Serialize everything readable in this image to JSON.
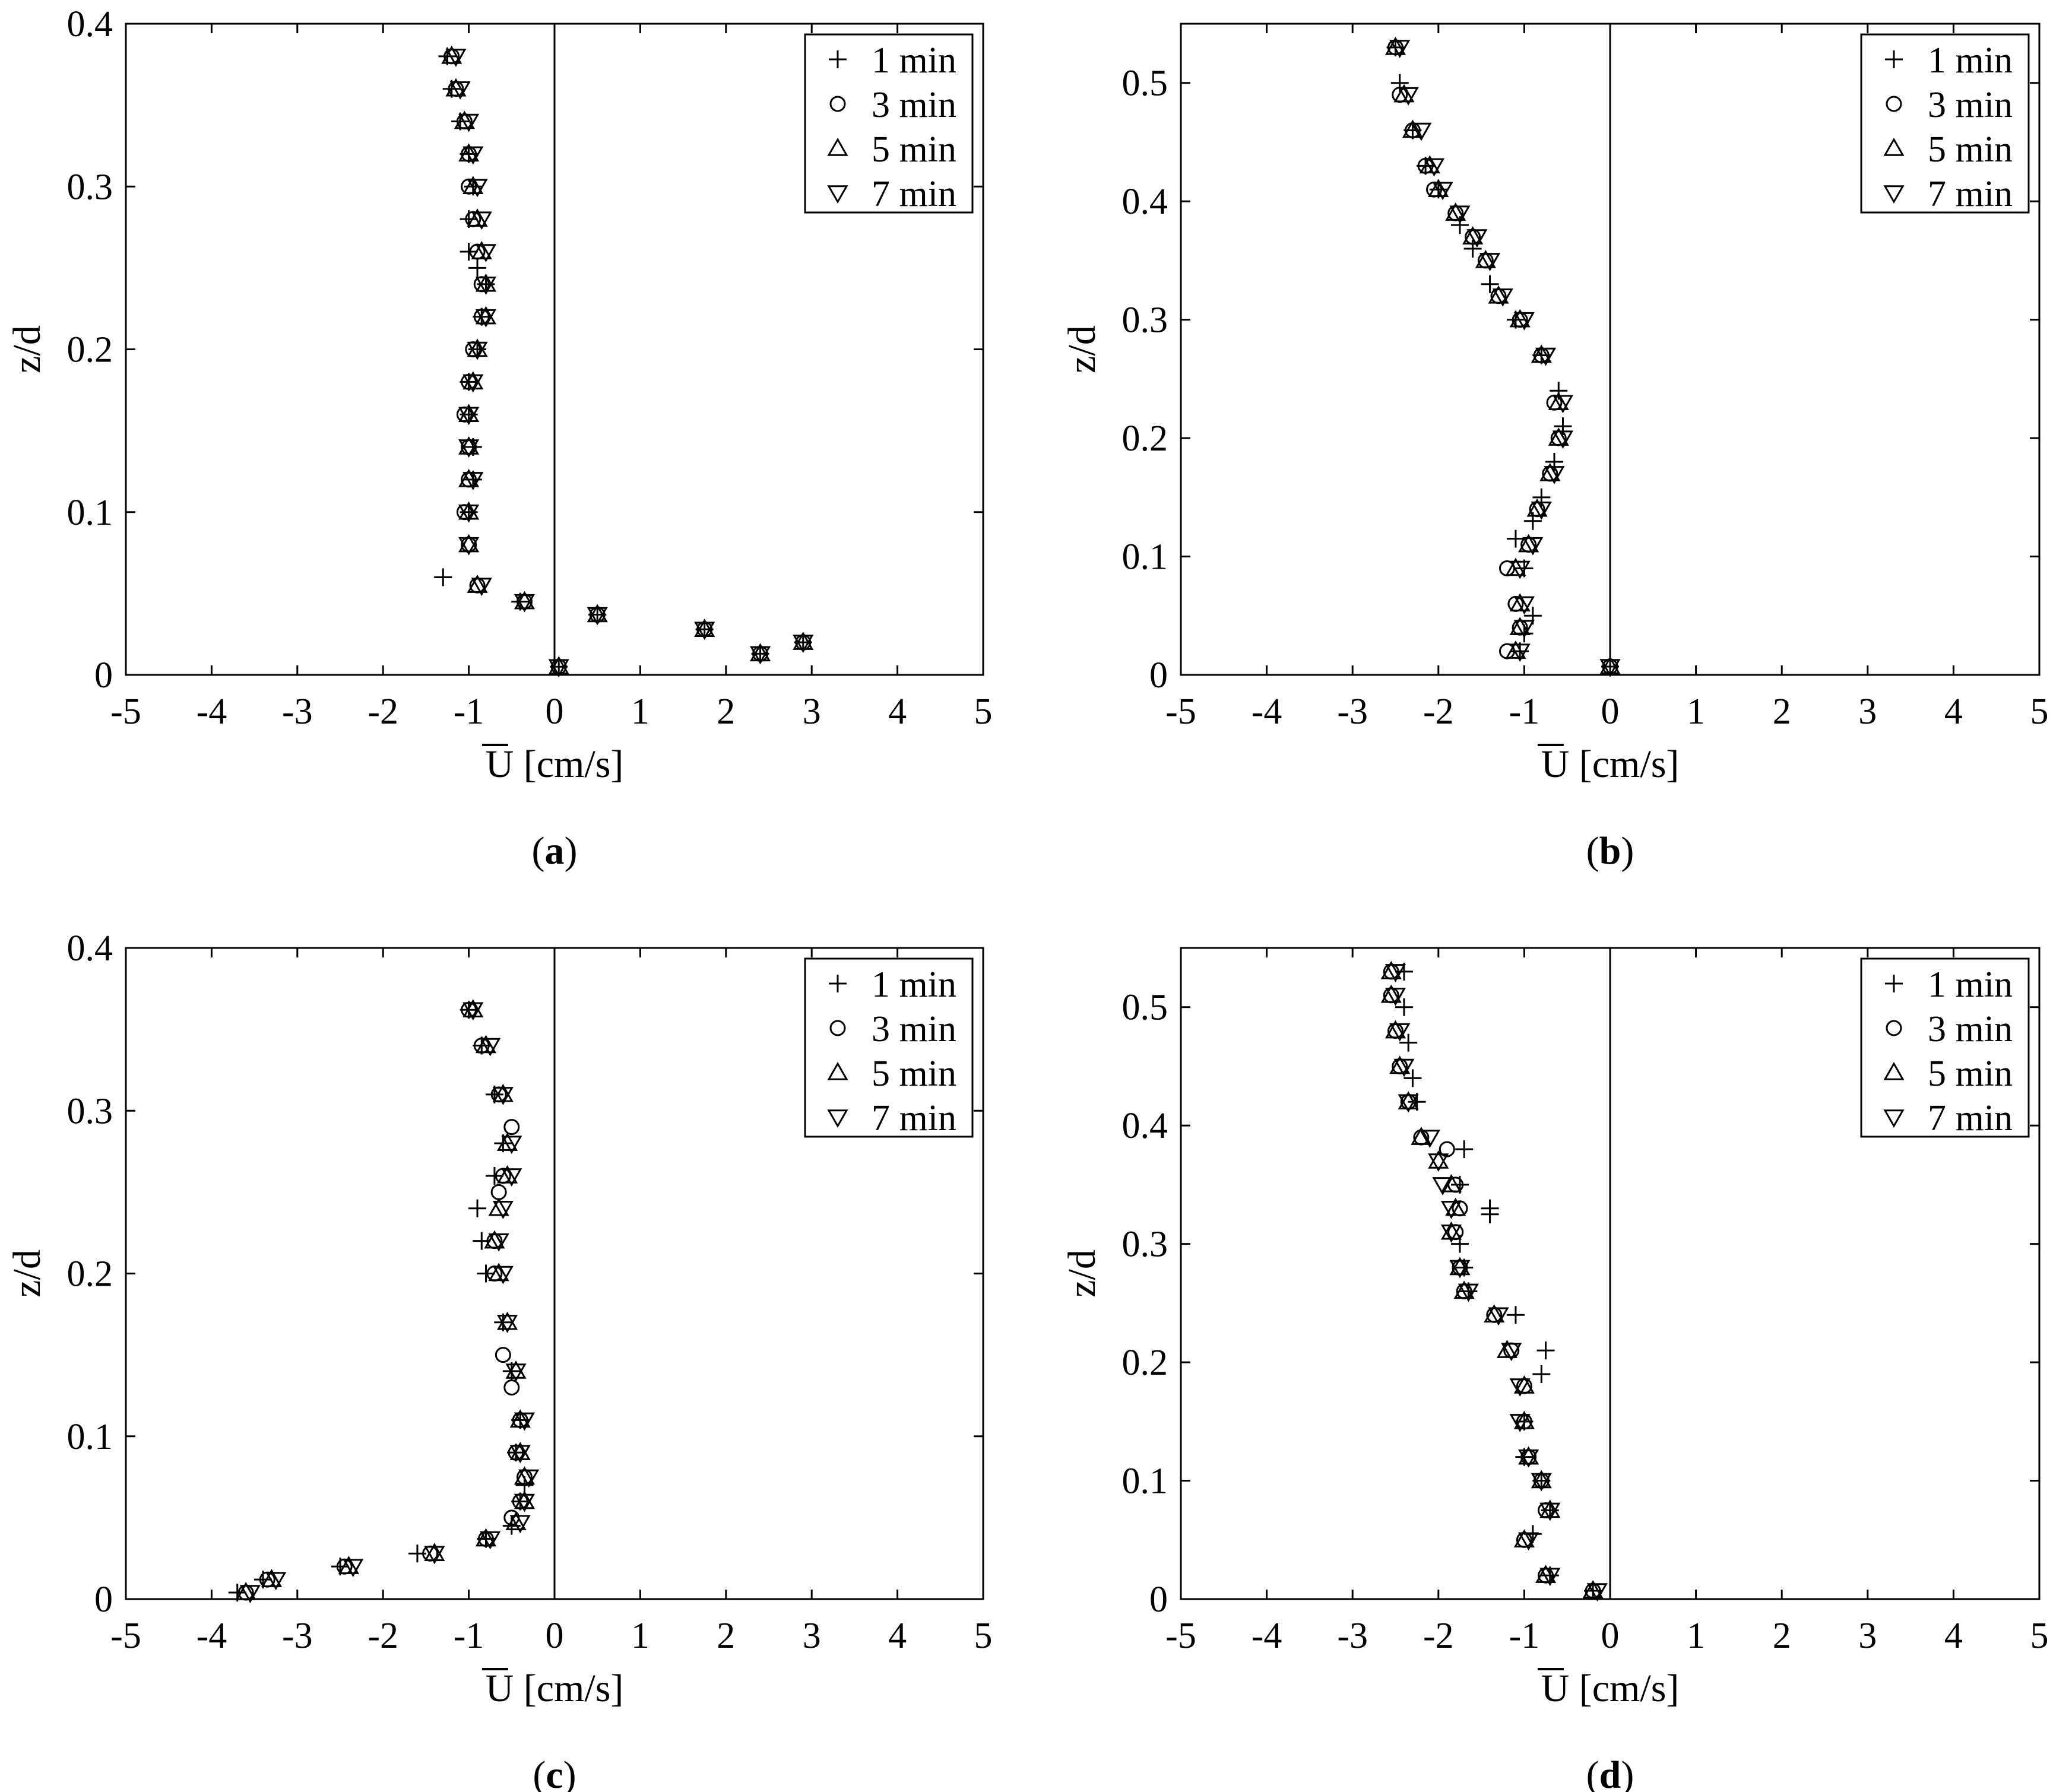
{
  "chart_data": [
    {
      "type": "scatter",
      "panel_label": "a",
      "xlabel": "U [cm/s]",
      "ylabel": "z/d",
      "xlim": [
        -5,
        5
      ],
      "ylim": [
        0,
        0.4
      ],
      "xticks": [
        "-5",
        "-4",
        "-3",
        "-2",
        "-1",
        "0",
        "1",
        "2",
        "3",
        "4",
        "5"
      ],
      "yticks": [
        "0",
        "0.1",
        "0.2",
        "0.3",
        "0.4"
      ],
      "vline_at": 0,
      "legend_position": "top-right",
      "series": [
        {
          "name": "1 min",
          "marker": "plus",
          "x": [
            -1.25,
            -1.2,
            -1.1,
            -1.0,
            -0.95,
            -1.0,
            -1.0,
            -0.9,
            -0.8,
            -0.85,
            -0.9,
            -1.0,
            -1.0,
            -0.95,
            -0.95,
            -1.0,
            -1.3,
            -0.4,
            0.05,
            0.5,
            1.75,
            2.4,
            2.9
          ],
          "y": [
            0.38,
            0.36,
            0.34,
            0.32,
            0.3,
            0.28,
            0.26,
            0.25,
            0.24,
            0.22,
            0.2,
            0.18,
            0.16,
            0.14,
            0.12,
            0.1,
            0.06,
            0.045,
            0.005,
            0.037,
            0.028,
            0.013,
            0.02
          ]
        },
        {
          "name": "3 min",
          "marker": "circle",
          "x": [
            -1.2,
            -1.15,
            -1.05,
            -1.0,
            -1.0,
            -0.95,
            -0.9,
            -0.85,
            -0.85,
            -0.95,
            -1.0,
            -1.05,
            -1.0,
            -1.0,
            -1.05,
            -1.0,
            -0.9,
            -0.35,
            0.05,
            0.5,
            1.75,
            2.4,
            2.9
          ],
          "y": [
            0.38,
            0.36,
            0.34,
            0.32,
            0.3,
            0.28,
            0.26,
            0.24,
            0.22,
            0.2,
            0.18,
            0.16,
            0.14,
            0.12,
            0.1,
            0.08,
            0.055,
            0.045,
            0.005,
            0.037,
            0.028,
            0.013,
            0.02
          ]
        },
        {
          "name": "5 min",
          "marker": "triangle-up",
          "x": [
            -1.2,
            -1.15,
            -1.05,
            -1.0,
            -0.95,
            -0.9,
            -0.85,
            -0.8,
            -0.8,
            -0.9,
            -0.95,
            -1.0,
            -1.0,
            -1.0,
            -1.0,
            -1.0,
            -0.9,
            -0.35,
            0.05,
            0.5,
            1.75,
            2.4,
            2.9
          ],
          "y": [
            0.38,
            0.36,
            0.34,
            0.32,
            0.3,
            0.28,
            0.26,
            0.24,
            0.22,
            0.2,
            0.18,
            0.16,
            0.14,
            0.12,
            0.1,
            0.08,
            0.055,
            0.045,
            0.005,
            0.037,
            0.028,
            0.013,
            0.02
          ]
        },
        {
          "name": "7 min",
          "marker": "triangle-down",
          "x": [
            -1.15,
            -1.1,
            -1.0,
            -0.95,
            -0.9,
            -0.85,
            -0.8,
            -0.8,
            -0.8,
            -0.9,
            -0.95,
            -1.0,
            -1.0,
            -0.95,
            -1.0,
            -1.0,
            -0.85,
            -0.35,
            0.05,
            0.5,
            1.75,
            2.4,
            2.9
          ],
          "y": [
            0.38,
            0.36,
            0.34,
            0.32,
            0.3,
            0.28,
            0.26,
            0.24,
            0.22,
            0.2,
            0.18,
            0.16,
            0.14,
            0.12,
            0.1,
            0.08,
            0.055,
            0.045,
            0.005,
            0.037,
            0.028,
            0.013,
            0.02
          ]
        }
      ]
    },
    {
      "type": "scatter",
      "panel_label": "b",
      "xlabel": "U [cm/s]",
      "ylabel": "z/d",
      "xlim": [
        -5,
        5
      ],
      "ylim": [
        0,
        0.55
      ],
      "xticks": [
        "-5",
        "-4",
        "-3",
        "-2",
        "-1",
        "0",
        "1",
        "2",
        "3",
        "4",
        "5"
      ],
      "yticks": [
        "0",
        "0.1",
        "0.2",
        "0.3",
        "0.4",
        "0.5"
      ],
      "vline_at": 0,
      "legend_position": "top-right",
      "series": [
        {
          "name": "1 min",
          "marker": "plus",
          "x": [
            -2.5,
            -2.45,
            -2.3,
            -2.15,
            -2.0,
            -1.75,
            -1.6,
            -1.4,
            -1.1,
            -0.8,
            -0.6,
            -0.55,
            -0.65,
            -0.8,
            -0.9,
            -1.1,
            -1.0,
            -0.9,
            -1.0,
            -1.05,
            0.0
          ],
          "y": [
            0.53,
            0.5,
            0.46,
            0.43,
            0.41,
            0.38,
            0.36,
            0.33,
            0.3,
            0.27,
            0.24,
            0.21,
            0.18,
            0.15,
            0.13,
            0.115,
            0.09,
            0.05,
            0.035,
            0.02,
            0.007
          ]
        },
        {
          "name": "3 min",
          "marker": "circle",
          "x": [
            -2.5,
            -2.45,
            -2.3,
            -2.15,
            -2.05,
            -1.8,
            -1.6,
            -1.45,
            -1.3,
            -1.05,
            -0.8,
            -0.65,
            -0.6,
            -0.7,
            -0.85,
            -0.95,
            -1.2,
            -1.1,
            -1.05,
            -1.2,
            0.0
          ],
          "y": [
            0.53,
            0.49,
            0.46,
            0.43,
            0.41,
            0.39,
            0.37,
            0.35,
            0.32,
            0.3,
            0.27,
            0.23,
            0.2,
            0.17,
            0.14,
            0.11,
            0.09,
            0.06,
            0.04,
            0.02,
            0.007
          ]
        },
        {
          "name": "5 min",
          "marker": "triangle-up",
          "x": [
            -2.5,
            -2.4,
            -2.3,
            -2.1,
            -2.0,
            -1.8,
            -1.6,
            -1.45,
            -1.3,
            -1.05,
            -0.8,
            -0.6,
            -0.6,
            -0.7,
            -0.85,
            -0.95,
            -1.1,
            -1.05,
            -1.05,
            -1.1,
            0.0
          ],
          "y": [
            0.53,
            0.49,
            0.46,
            0.43,
            0.41,
            0.39,
            0.37,
            0.35,
            0.32,
            0.3,
            0.27,
            0.23,
            0.2,
            0.17,
            0.14,
            0.11,
            0.09,
            0.06,
            0.04,
            0.02,
            0.007
          ]
        },
        {
          "name": "7 min",
          "marker": "triangle-down",
          "x": [
            -2.45,
            -2.35,
            -2.2,
            -2.05,
            -1.95,
            -1.75,
            -1.55,
            -1.4,
            -1.25,
            -1.0,
            -0.75,
            -0.55,
            -0.55,
            -0.65,
            -0.8,
            -0.9,
            -1.05,
            -1.0,
            -1.0,
            -1.05,
            0.0
          ],
          "y": [
            0.53,
            0.49,
            0.46,
            0.43,
            0.41,
            0.39,
            0.37,
            0.35,
            0.32,
            0.3,
            0.27,
            0.23,
            0.2,
            0.17,
            0.14,
            0.11,
            0.09,
            0.06,
            0.04,
            0.02,
            0.007
          ]
        }
      ]
    },
    {
      "type": "scatter",
      "panel_label": "c",
      "xlabel": "U [cm/s]",
      "ylabel": "z/d",
      "xlim": [
        -5,
        5
      ],
      "ylim": [
        0,
        0.4
      ],
      "xticks": [
        "-5",
        "-4",
        "-3",
        "-2",
        "-1",
        "0",
        "1",
        "2",
        "3",
        "4",
        "5"
      ],
      "yticks": [
        "0",
        "0.1",
        "0.2",
        "0.3",
        "0.4"
      ],
      "vline_at": 0,
      "legend_position": "top-right",
      "series": [
        {
          "name": "1 min",
          "marker": "plus",
          "x": [
            -1.0,
            -0.85,
            -0.7,
            -0.6,
            -0.7,
            -0.9,
            -0.85,
            -0.8,
            -0.6,
            -0.5,
            -0.4,
            -0.45,
            -0.35,
            -0.4,
            -0.5,
            -0.8,
            -1.6,
            -2.5,
            -3.4,
            -3.7
          ],
          "y": [
            0.362,
            0.34,
            0.31,
            0.28,
            0.26,
            0.24,
            0.22,
            0.2,
            0.17,
            0.14,
            0.11,
            0.09,
            0.07,
            0.06,
            0.045,
            0.037,
            0.028,
            0.02,
            0.012,
            0.004
          ]
        },
        {
          "name": "3 min",
          "marker": "circle",
          "x": [
            -1.0,
            -0.85,
            -0.65,
            -0.5,
            -0.6,
            -0.65,
            -0.7,
            -0.7,
            -0.6,
            -0.5,
            -0.4,
            -0.45,
            -0.35,
            -0.4,
            -0.5,
            -0.8,
            -1.45,
            -2.45,
            -3.35,
            -3.6
          ],
          "y": [
            0.362,
            0.34,
            0.31,
            0.29,
            0.26,
            0.25,
            0.22,
            0.2,
            0.15,
            0.13,
            0.11,
            0.09,
            0.075,
            0.06,
            0.05,
            0.037,
            0.028,
            0.02,
            0.012,
            0.004
          ]
        },
        {
          "name": "5 min",
          "marker": "triangle-up",
          "x": [
            -0.95,
            -0.8,
            -0.6,
            -0.55,
            -0.55,
            -0.65,
            -0.7,
            -0.65,
            -0.55,
            -0.45,
            -0.4,
            -0.4,
            -0.35,
            -0.35,
            -0.45,
            -0.8,
            -1.4,
            -2.4,
            -3.3,
            -3.6
          ],
          "y": [
            0.362,
            0.34,
            0.31,
            0.28,
            0.26,
            0.24,
            0.22,
            0.2,
            0.17,
            0.14,
            0.11,
            0.09,
            0.075,
            0.06,
            0.047,
            0.037,
            0.028,
            0.02,
            0.012,
            0.004
          ]
        },
        {
          "name": "7 min",
          "marker": "triangle-down",
          "x": [
            -0.95,
            -0.75,
            -0.6,
            -0.5,
            -0.5,
            -0.6,
            -0.65,
            -0.6,
            -0.55,
            -0.45,
            -0.35,
            -0.4,
            -0.3,
            -0.35,
            -0.4,
            -0.75,
            -1.4,
            -2.35,
            -3.25,
            -3.55
          ],
          "y": [
            0.362,
            0.34,
            0.31,
            0.28,
            0.26,
            0.24,
            0.22,
            0.2,
            0.17,
            0.14,
            0.11,
            0.09,
            0.075,
            0.06,
            0.047,
            0.037,
            0.028,
            0.02,
            0.012,
            0.004
          ]
        }
      ]
    },
    {
      "type": "scatter",
      "panel_label": "d",
      "xlabel": "U [cm/s]",
      "ylabel": "z/d",
      "xlim": [
        -5,
        5
      ],
      "ylim": [
        0,
        0.55
      ],
      "xticks": [
        "-5",
        "-4",
        "-3",
        "-2",
        "-1",
        "0",
        "1",
        "2",
        "3",
        "4",
        "5"
      ],
      "yticks": [
        "0",
        "0.1",
        "0.2",
        "0.3",
        "0.4",
        "0.5"
      ],
      "vline_at": 0,
      "legend_position": "top-right",
      "series": [
        {
          "name": "1 min",
          "marker": "plus",
          "x": [
            -2.4,
            -2.4,
            -2.35,
            -2.3,
            -2.25,
            -1.7,
            -1.75,
            -1.4,
            -1.4,
            -1.75,
            -1.7,
            -1.65,
            -1.1,
            -0.75,
            -0.8,
            -1.0,
            -1.0,
            -0.8,
            -0.7,
            -0.9,
            -0.7,
            -0.2
          ],
          "y": [
            0.53,
            0.5,
            0.47,
            0.44,
            0.42,
            0.38,
            0.35,
            0.33,
            0.325,
            0.3,
            0.28,
            0.26,
            0.24,
            0.21,
            0.19,
            0.15,
            0.12,
            0.1,
            0.075,
            0.055,
            0.02,
            0.007
          ]
        },
        {
          "name": "3 min",
          "marker": "circle",
          "x": [
            -2.55,
            -2.55,
            -2.5,
            -2.45,
            -2.35,
            -2.2,
            -1.9,
            -1.8,
            -1.75,
            -1.8,
            -1.75,
            -1.7,
            -1.35,
            -1.15,
            -1.0,
            -1.0,
            -0.95,
            -0.8,
            -0.75,
            -1.0,
            -0.75,
            -0.2
          ],
          "y": [
            0.53,
            0.51,
            0.48,
            0.45,
            0.42,
            0.39,
            0.38,
            0.35,
            0.33,
            0.31,
            0.28,
            0.26,
            0.24,
            0.21,
            0.18,
            0.15,
            0.12,
            0.1,
            0.075,
            0.05,
            0.02,
            0.007
          ]
        },
        {
          "name": "5 min",
          "marker": "triangle-up",
          "x": [
            -2.55,
            -2.55,
            -2.5,
            -2.45,
            -2.35,
            -2.2,
            -2.0,
            -1.85,
            -1.8,
            -1.85,
            -1.75,
            -1.7,
            -1.35,
            -1.2,
            -1.0,
            -1.0,
            -0.95,
            -0.8,
            -0.7,
            -1.0,
            -0.75,
            -0.2
          ],
          "y": [
            0.53,
            0.51,
            0.48,
            0.45,
            0.42,
            0.39,
            0.37,
            0.35,
            0.33,
            0.31,
            0.28,
            0.26,
            0.24,
            0.21,
            0.18,
            0.15,
            0.12,
            0.1,
            0.075,
            0.05,
            0.02,
            0.007
          ]
        },
        {
          "name": "7 min",
          "marker": "triangle-down",
          "x": [
            -2.5,
            -2.5,
            -2.45,
            -2.4,
            -2.35,
            -2.1,
            -2.0,
            -1.95,
            -1.85,
            -1.85,
            -1.75,
            -1.65,
            -1.3,
            -1.15,
            -1.05,
            -1.05,
            -0.95,
            -0.8,
            -0.7,
            -0.95,
            -0.7,
            -0.15
          ],
          "y": [
            0.53,
            0.51,
            0.48,
            0.45,
            0.42,
            0.39,
            0.37,
            0.35,
            0.33,
            0.31,
            0.28,
            0.26,
            0.24,
            0.21,
            0.18,
            0.15,
            0.12,
            0.1,
            0.075,
            0.05,
            0.02,
            0.007
          ]
        }
      ]
    }
  ]
}
